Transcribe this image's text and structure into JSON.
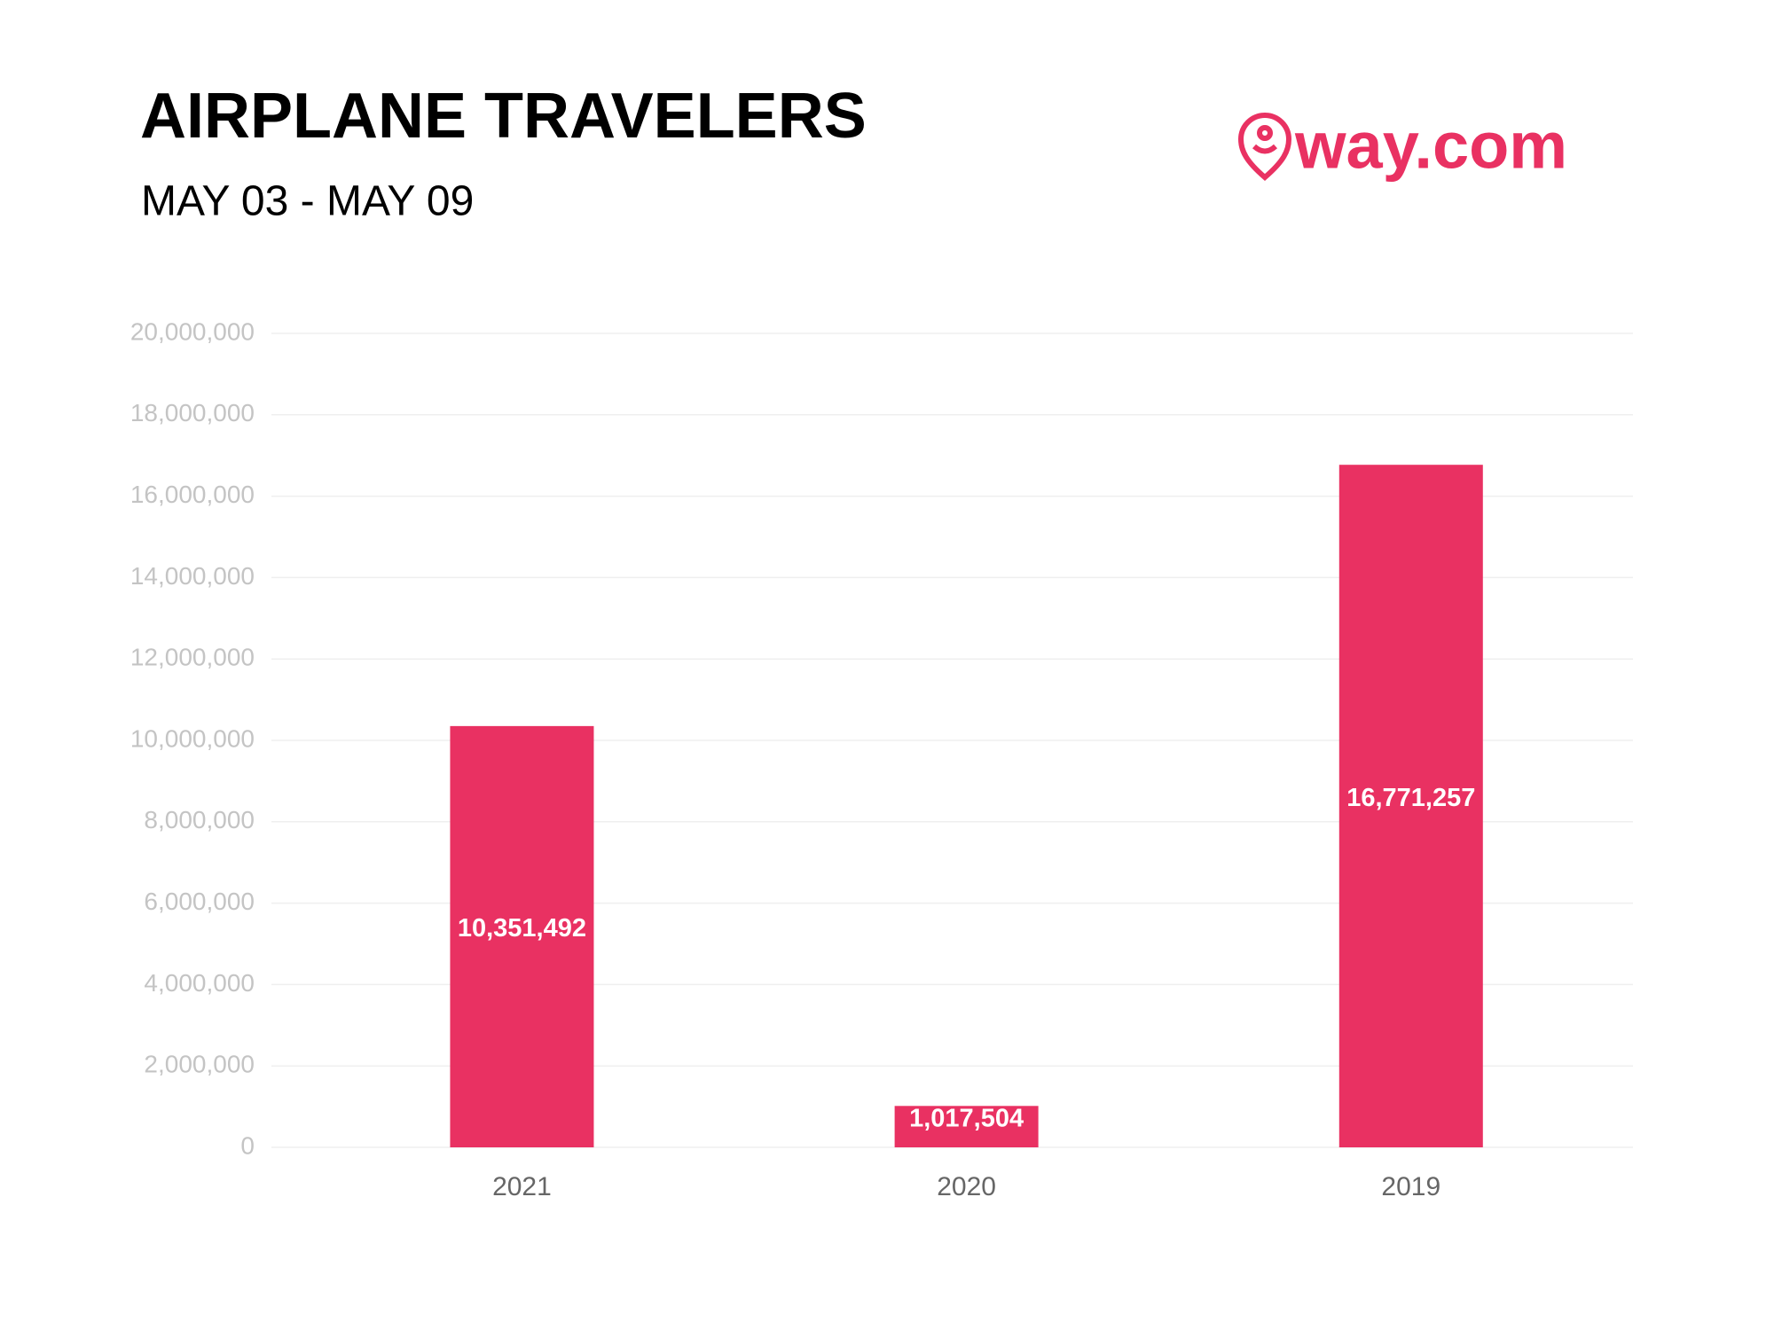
{
  "chart_data": {
    "type": "bar",
    "title": "AIRPLANE TRAVELERS",
    "subtitle": "MAY 03 - MAY 09",
    "logo": "way.com",
    "categories": [
      "2021",
      "2020",
      "2019"
    ],
    "values": [
      10351492,
      1017504,
      16771257
    ],
    "value_labels": [
      "10,351,492",
      "1,017,504",
      "16,771,257"
    ],
    "color": "#e93162",
    "ylim": [
      0,
      20000000
    ],
    "yticks": [
      0,
      {
        "value": 2000000,
        "label": "2,000,000"
      },
      {
        "value": 4000000,
        "label": "4,000,000"
      },
      {
        "value": 6000000,
        "label": "6,000,000"
      },
      {
        "value": 8000000,
        "label": "8,000,000"
      },
      {
        "value": 10000000,
        "label": "10,000,000"
      },
      {
        "value": 12000000,
        "label": "12,000,000"
      },
      {
        "value": 14000000,
        "label": "14,000,000"
      },
      {
        "value": 16000000,
        "label": "16,000,000"
      },
      {
        "value": 18000000,
        "label": "18,000,000"
      },
      {
        "value": 20000000,
        "label": "20,000,000"
      }
    ],
    "grid": true
  }
}
